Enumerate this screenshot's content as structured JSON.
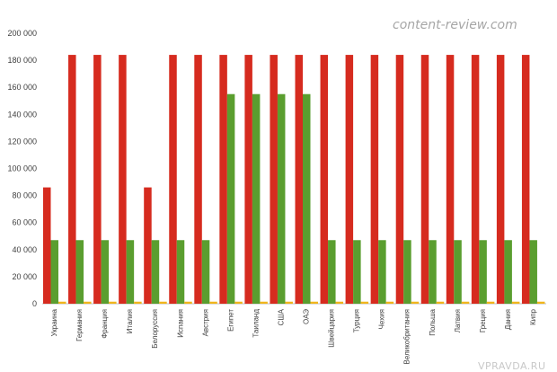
{
  "watermark": "content-review.com",
  "footer_mark": "VPRAVDA.RU",
  "colors": {
    "red": "#d62b1f",
    "green": "#5a9e2f",
    "yellow": "#f0b51c",
    "axis": "#bfbfbf",
    "text": "#404040"
  },
  "chart_data": {
    "type": "bar",
    "title": "",
    "xlabel": "",
    "ylabel": "",
    "ylim": [
      0,
      200000
    ],
    "yticks": [
      "0",
      "20 000",
      "40 000",
      "60 000",
      "80 000",
      "100 000",
      "120 000",
      "140 000",
      "160 000",
      "180 000",
      "200 000"
    ],
    "grid": false,
    "categories": [
      "Украина",
      "Германия",
      "Франция",
      "Италия",
      "Белоруссия",
      "Испания",
      "Австрия",
      "Египет",
      "Таиланд",
      "США",
      "ОАЭ",
      "Швейцария",
      "Турция",
      "Чехия",
      "Великобритания",
      "Польша",
      "Латвия",
      "Греция",
      "Дания",
      "Кипр"
    ],
    "series": [
      {
        "values": [
          86000,
          184000,
          184000,
          184000,
          86000,
          184000,
          184000,
          184000,
          184000,
          184000,
          184000,
          184000,
          184000,
          184000,
          184000,
          184000,
          184000,
          184000,
          184000,
          184000
        ]
      },
      {
        "values": [
          47000,
          47000,
          47000,
          47000,
          47000,
          47000,
          47000,
          155000,
          155000,
          155000,
          155000,
          47000,
          47000,
          47000,
          47000,
          47000,
          47000,
          47000,
          47000,
          47000
        ]
      },
      {
        "values": [
          1500,
          1500,
          1500,
          1500,
          1500,
          1500,
          1500,
          1500,
          1500,
          1500,
          1500,
          1500,
          1500,
          1500,
          1500,
          1500,
          1500,
          1500,
          1500,
          1500
        ]
      }
    ]
  }
}
